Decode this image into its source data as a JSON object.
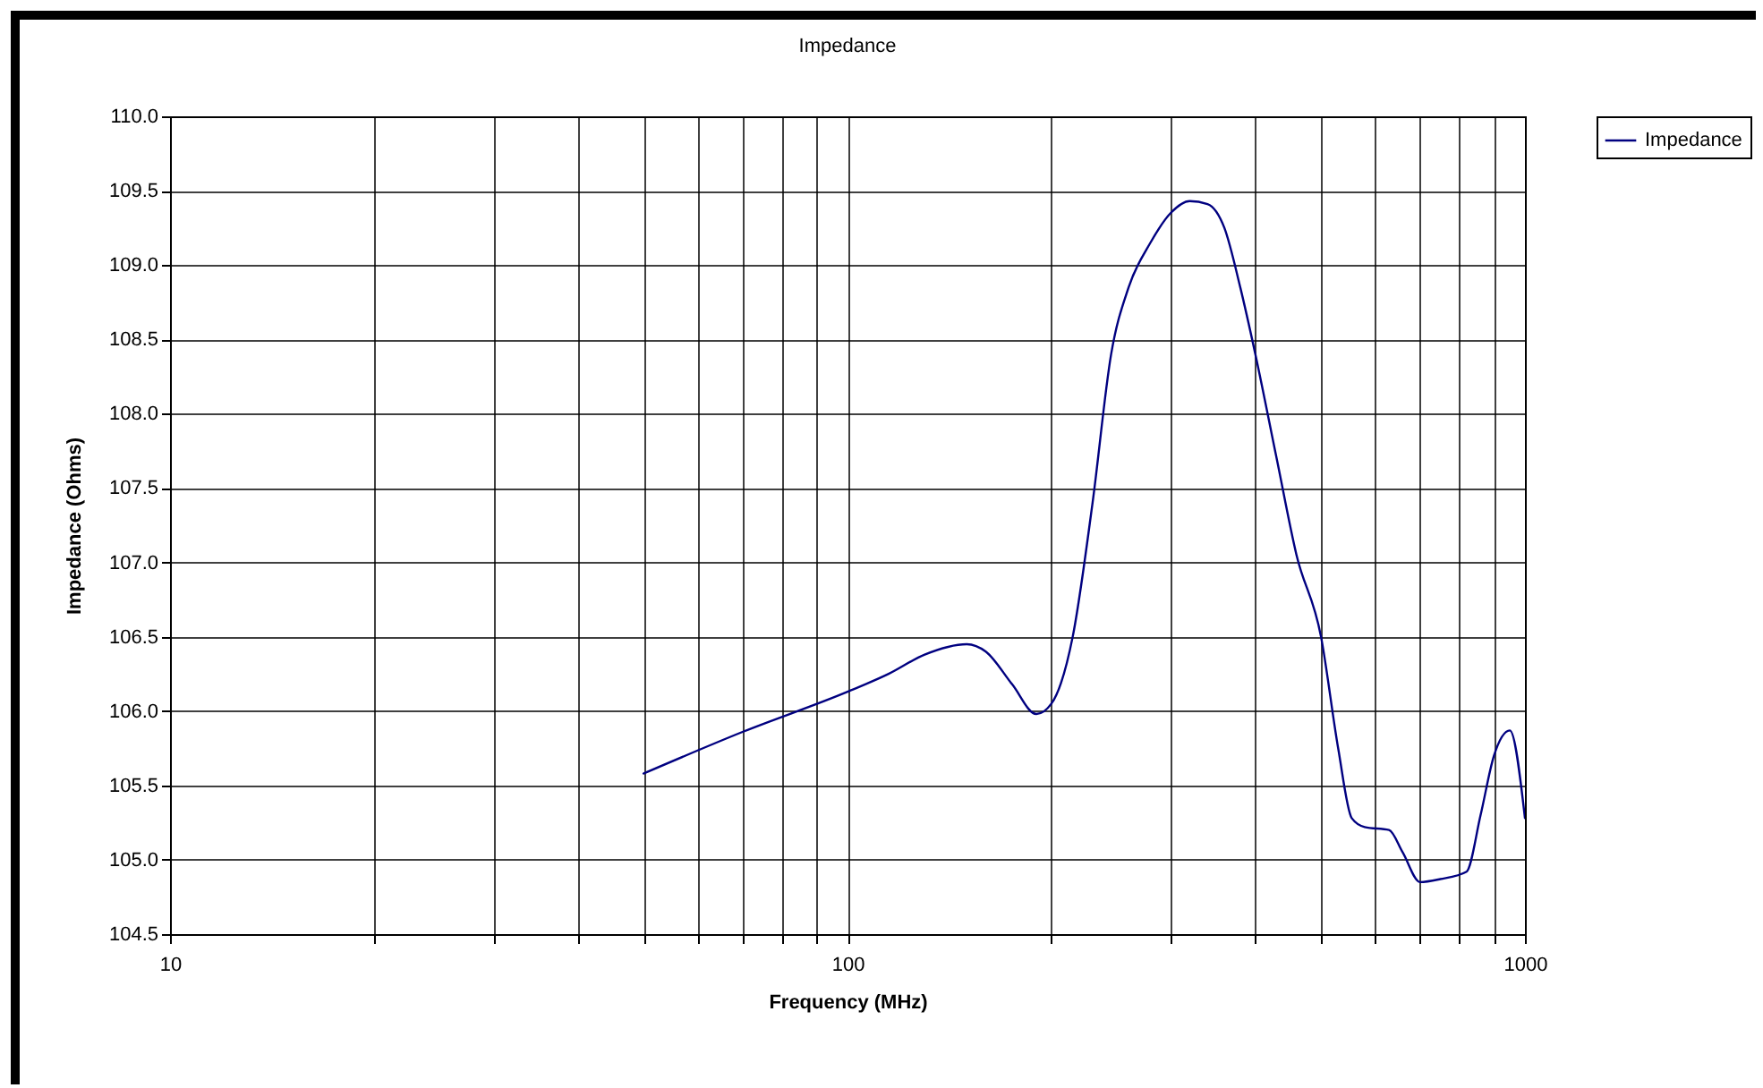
{
  "chart_data": {
    "type": "line",
    "title": "Impedance",
    "xlabel": "Frequency (MHz)",
    "ylabel": "Impedance (Ohms)",
    "log": "x",
    "grid": true,
    "legend": "right",
    "marker": "none",
    "line_style": "solid",
    "xlim": [
      10,
      1000
    ],
    "ylim": [
      104.5,
      110.0
    ],
    "xticks": [
      10,
      {
        "value": 20,
        "label": null
      },
      {
        "value": 30,
        "label": null
      },
      {
        "value": 40,
        "label": null
      },
      {
        "value": 50,
        "label": null
      },
      {
        "value": 60,
        "label": null
      },
      {
        "value": 70,
        "label": null
      },
      {
        "value": 80,
        "label": null
      },
      {
        "value": 90,
        "label": null
      },
      100,
      {
        "value": 200,
        "label": null
      },
      {
        "value": 300,
        "label": null
      },
      {
        "value": 400,
        "label": null
      },
      {
        "value": 500,
        "label": null
      },
      {
        "value": 600,
        "label": null
      },
      {
        "value": 700,
        "label": null
      },
      {
        "value": 800,
        "label": null
      },
      {
        "value": 900,
        "label": null
      },
      1000
    ],
    "yticks": [
      {
        "value": 104.5,
        "label": "104.5"
      },
      {
        "value": 105,
        "label": "105.0"
      },
      {
        "value": 105.5,
        "label": "105.5"
      },
      {
        "value": 106,
        "label": "106.0"
      },
      {
        "value": 106.5,
        "label": "106.5"
      },
      {
        "value": 107,
        "label": "107.0"
      },
      {
        "value": 107.5,
        "label": "107.5"
      },
      {
        "value": 108,
        "label": "108.0"
      },
      {
        "value": 108.5,
        "label": "108.5"
      },
      {
        "value": 109,
        "label": "109.0"
      },
      {
        "value": 109.5,
        "label": "109.5"
      },
      {
        "value": 110,
        "label": "110.0"
      }
    ],
    "x": [
      50,
      70,
      100,
      115,
      130,
      150,
      160,
      175,
      190,
      200,
      215,
      230,
      245,
      260,
      280,
      300,
      320,
      340,
      360,
      380,
      400,
      430,
      460,
      500,
      530,
      555,
      580,
      630,
      660,
      700,
      750,
      820,
      860,
      900,
      950,
      1000
    ],
    "series": [
      {
        "name": "Impedance",
        "color": "#000080",
        "values": [
          105.58,
          105.86,
          106.13,
          106.25,
          106.38,
          106.45,
          106.4,
          106.18,
          105.98,
          106.05,
          106.5,
          107.4,
          108.4,
          108.85,
          109.15,
          109.35,
          109.43,
          109.41,
          109.25,
          108.85,
          108.4,
          107.7,
          107.05,
          106.5,
          105.75,
          105.28,
          105.22,
          105.2,
          105.05,
          104.85,
          104.87,
          104.92,
          105.3,
          105.7,
          105.87,
          105.28
        ]
      }
    ]
  }
}
